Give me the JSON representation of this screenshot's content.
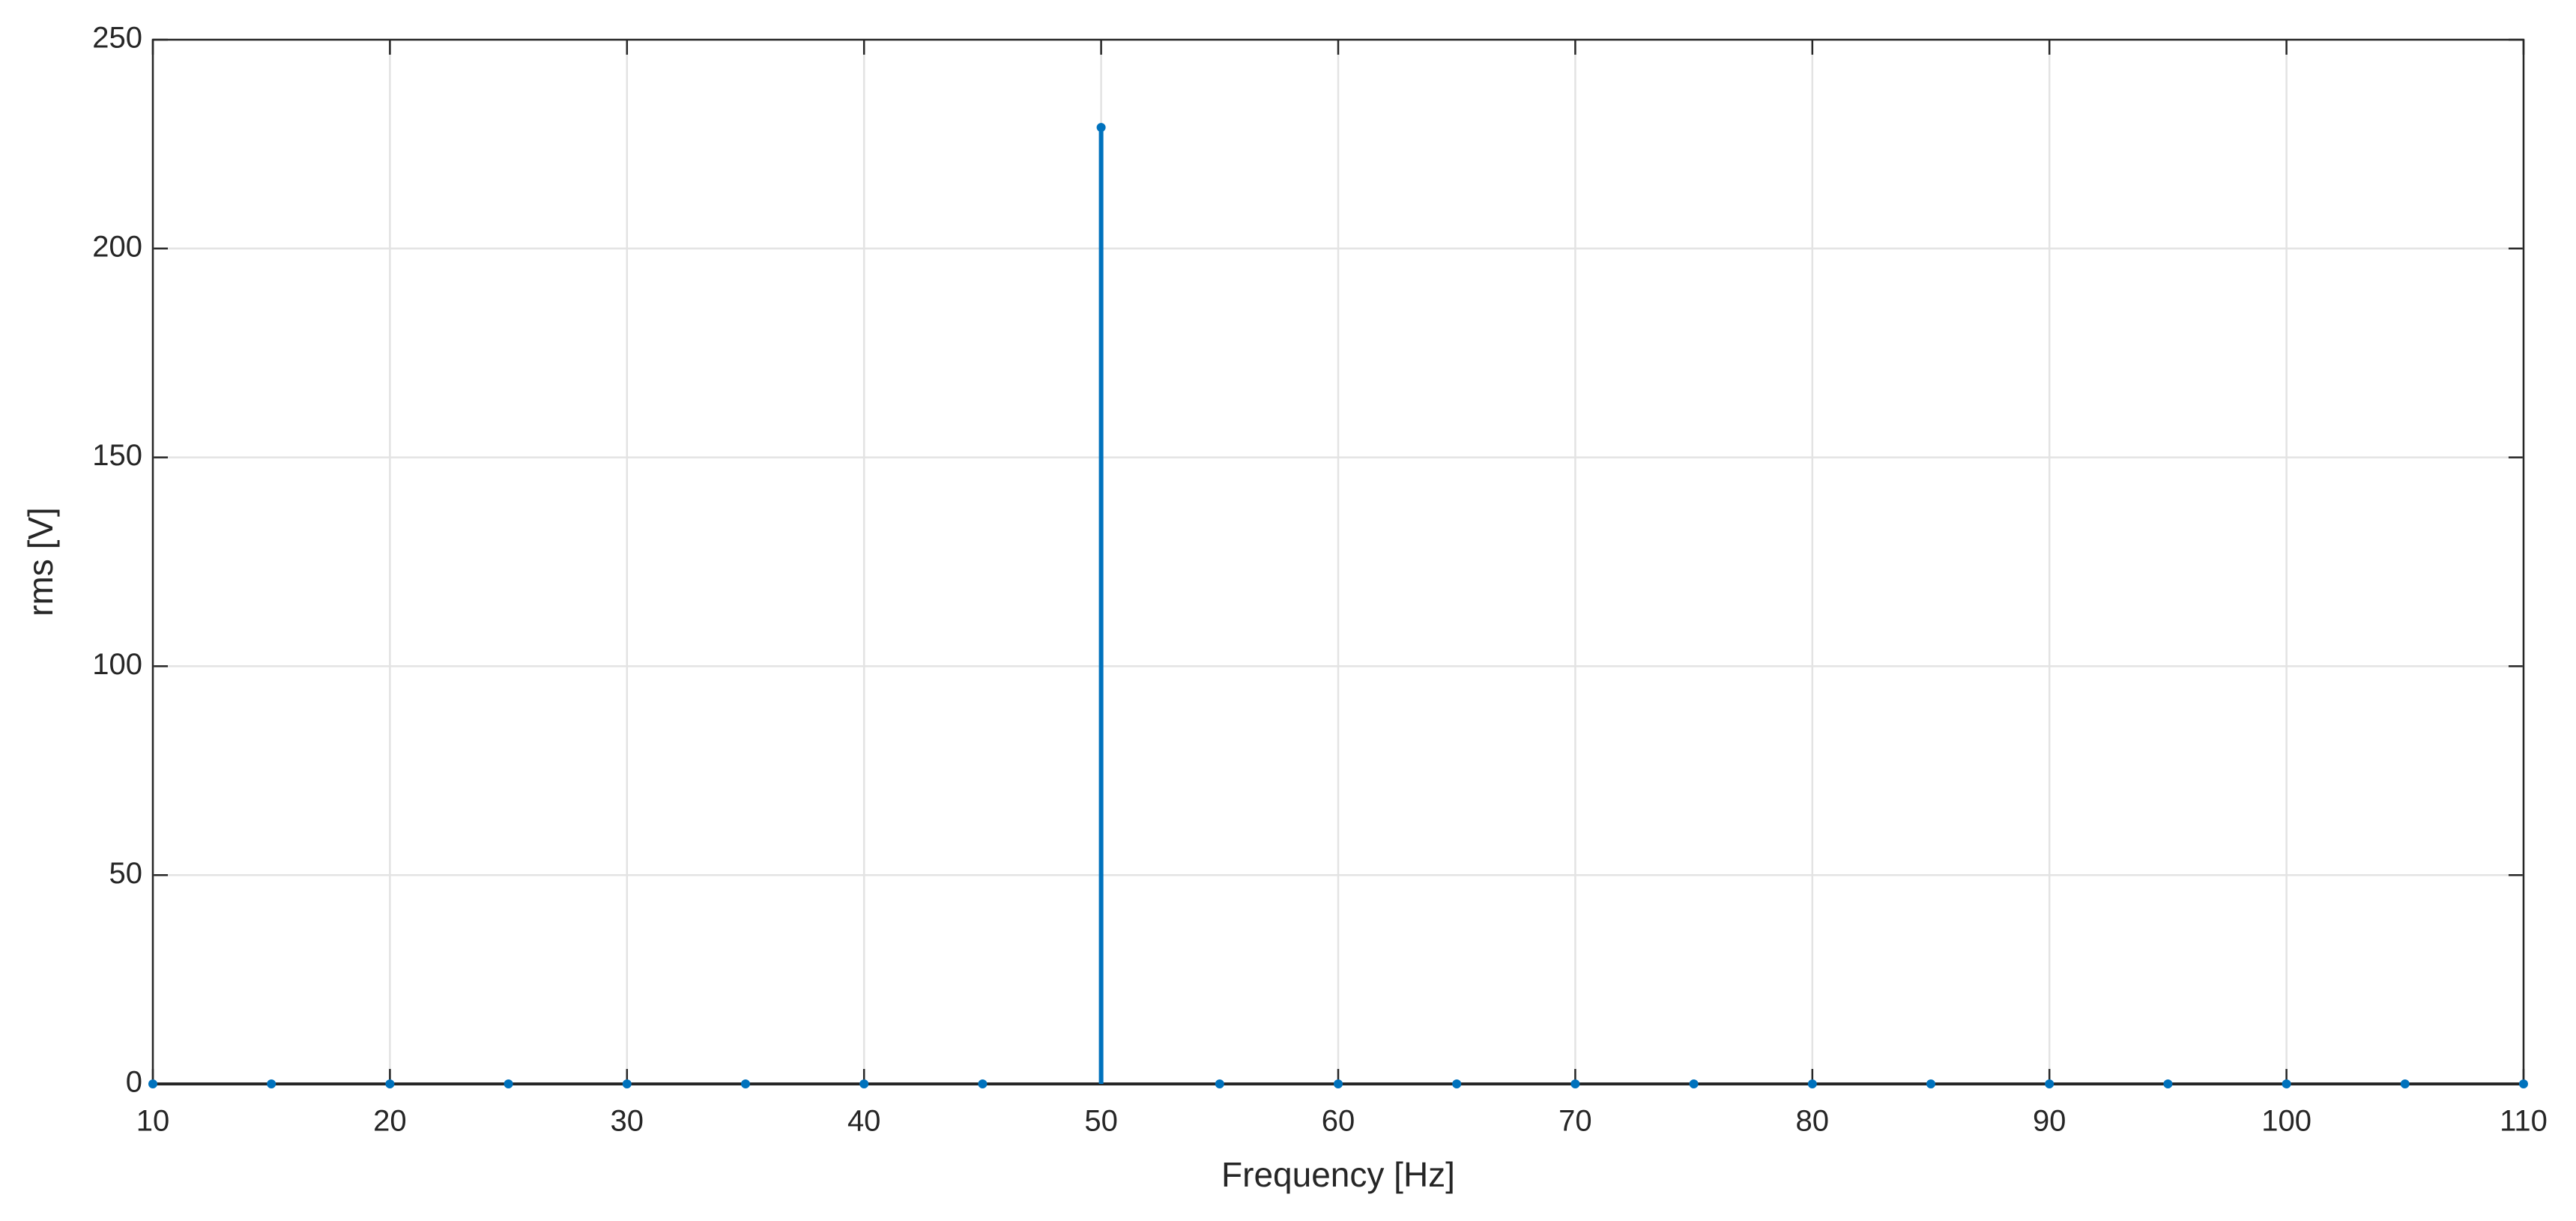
{
  "chart_data": {
    "type": "stem",
    "xlabel": "Frequency [Hz]",
    "ylabel": "rms [V]",
    "x": [
      10,
      15,
      20,
      25,
      30,
      35,
      40,
      45,
      50,
      55,
      60,
      65,
      70,
      75,
      80,
      85,
      90,
      95,
      100,
      105,
      110
    ],
    "values": [
      0,
      0,
      0,
      0,
      0,
      0,
      0,
      0,
      229,
      0,
      0,
      0,
      0,
      0,
      0,
      0,
      0,
      0,
      0,
      0,
      0
    ],
    "color": "#0072bd",
    "xlim": [
      10,
      110
    ],
    "xticks": [
      10,
      20,
      30,
      40,
      50,
      60,
      70,
      80,
      90,
      100,
      110
    ],
    "ylim": [
      0,
      250
    ],
    "yticks": [
      0,
      50,
      100,
      150,
      200,
      250
    ],
    "grid": true
  }
}
